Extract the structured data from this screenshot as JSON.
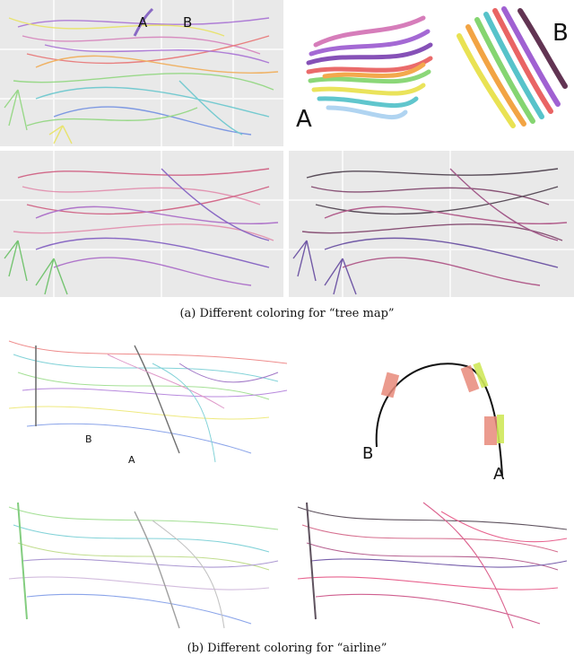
{
  "figure": {
    "caption_a": "(a) Different coloring for “tree map”",
    "caption_b": "(b) Different coloring for “airline”"
  },
  "panels": {
    "treemap_top_left": {
      "marker_a": "A",
      "marker_b": "B"
    },
    "bundle_closeup": {
      "label_a": "A",
      "label_b": "B"
    },
    "airline_top_left": {
      "marker_a": "A",
      "marker_b": "B"
    },
    "arc_diagram": {
      "label_a": "A",
      "label_b": "B"
    }
  },
  "colors": {
    "panel_bg": "#e9e9e9",
    "rainbow": [
      "#9b59d0",
      "#d26fb3",
      "#e85c5c",
      "#f2a03a",
      "#e8e14a",
      "#7fd36a",
      "#4fc0c8",
      "#5a7ee0"
    ],
    "pink_scheme": [
      "#c93f6a",
      "#e07aa0",
      "#9c4fc0",
      "#6a3fb8"
    ],
    "dark_scheme": [
      "#2a1a2a",
      "#6a2050",
      "#a0306e",
      "#4a2a90"
    ]
  }
}
